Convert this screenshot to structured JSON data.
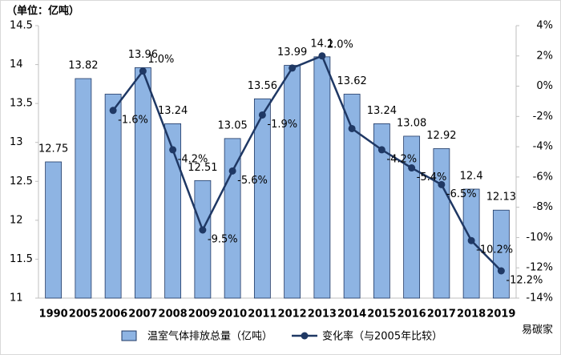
{
  "chart_data": {
    "type": "bar-line",
    "unit_note": "（单位：亿吨）",
    "categories": [
      "1990",
      "2005",
      "2006",
      "2007",
      "2008",
      "2009",
      "2010",
      "2011",
      "2012",
      "2013",
      "2014",
      "2015",
      "2016",
      "2017",
      "2018",
      "2019"
    ],
    "series": [
      {
        "name": "温室气体排放总量（亿吨）",
        "type": "bar",
        "color": "#8eb4e3",
        "values": [
          12.75,
          13.82,
          13.62,
          13.96,
          13.24,
          12.51,
          13.05,
          13.56,
          13.99,
          14.1,
          13.62,
          13.24,
          13.08,
          12.92,
          12.4,
          12.13
        ],
        "value_labels": [
          "12.75",
          "13.82",
          null,
          "13.96",
          "13.24",
          "12.51",
          "13.05",
          "13.56",
          "13.99",
          "14.1",
          "13.62",
          "13.24",
          "13.08",
          "12.92",
          "12.4",
          "12.13"
        ]
      },
      {
        "name": "变化率（与2005年比较）",
        "type": "line",
        "axis": "y2",
        "color": "#1f3864",
        "values": [
          null,
          null,
          -1.6,
          1.0,
          -4.2,
          -9.5,
          -5.6,
          -1.9,
          1.2,
          2.0,
          -2.8,
          -4.2,
          -5.4,
          -6.5,
          -10.2,
          -12.2
        ],
        "value_labels": [
          null,
          null,
          "-1.6%",
          "1.0%",
          "-4.2%",
          "-9.5%",
          "-5.6%",
          "-1.9%",
          null,
          "2.0%",
          null,
          "-4.2%",
          "-5.4%",
          "-6.5%",
          "-10.2%",
          "-12.2%"
        ]
      }
    ],
    "ylim": [
      11,
      14.5
    ],
    "yticks": [
      11,
      11.5,
      12,
      12.5,
      13,
      13.5,
      14,
      14.5
    ],
    "y2lim": [
      -14,
      4
    ],
    "y2ticks": [
      {
        "value": -14,
        "label": "-14%"
      },
      {
        "value": -12,
        "label": "-12%"
      },
      {
        "value": -10,
        "label": "-10%"
      },
      {
        "value": -8,
        "label": "-8%"
      },
      {
        "value": -6,
        "label": "-6%"
      },
      {
        "value": -4,
        "label": "-4%"
      },
      {
        "value": -2,
        "label": "-2%"
      },
      {
        "value": 0,
        "label": "0%"
      },
      {
        "value": 2,
        "label": "2%"
      },
      {
        "value": 4,
        "label": "4%"
      }
    ],
    "watermark": "易碳家"
  }
}
